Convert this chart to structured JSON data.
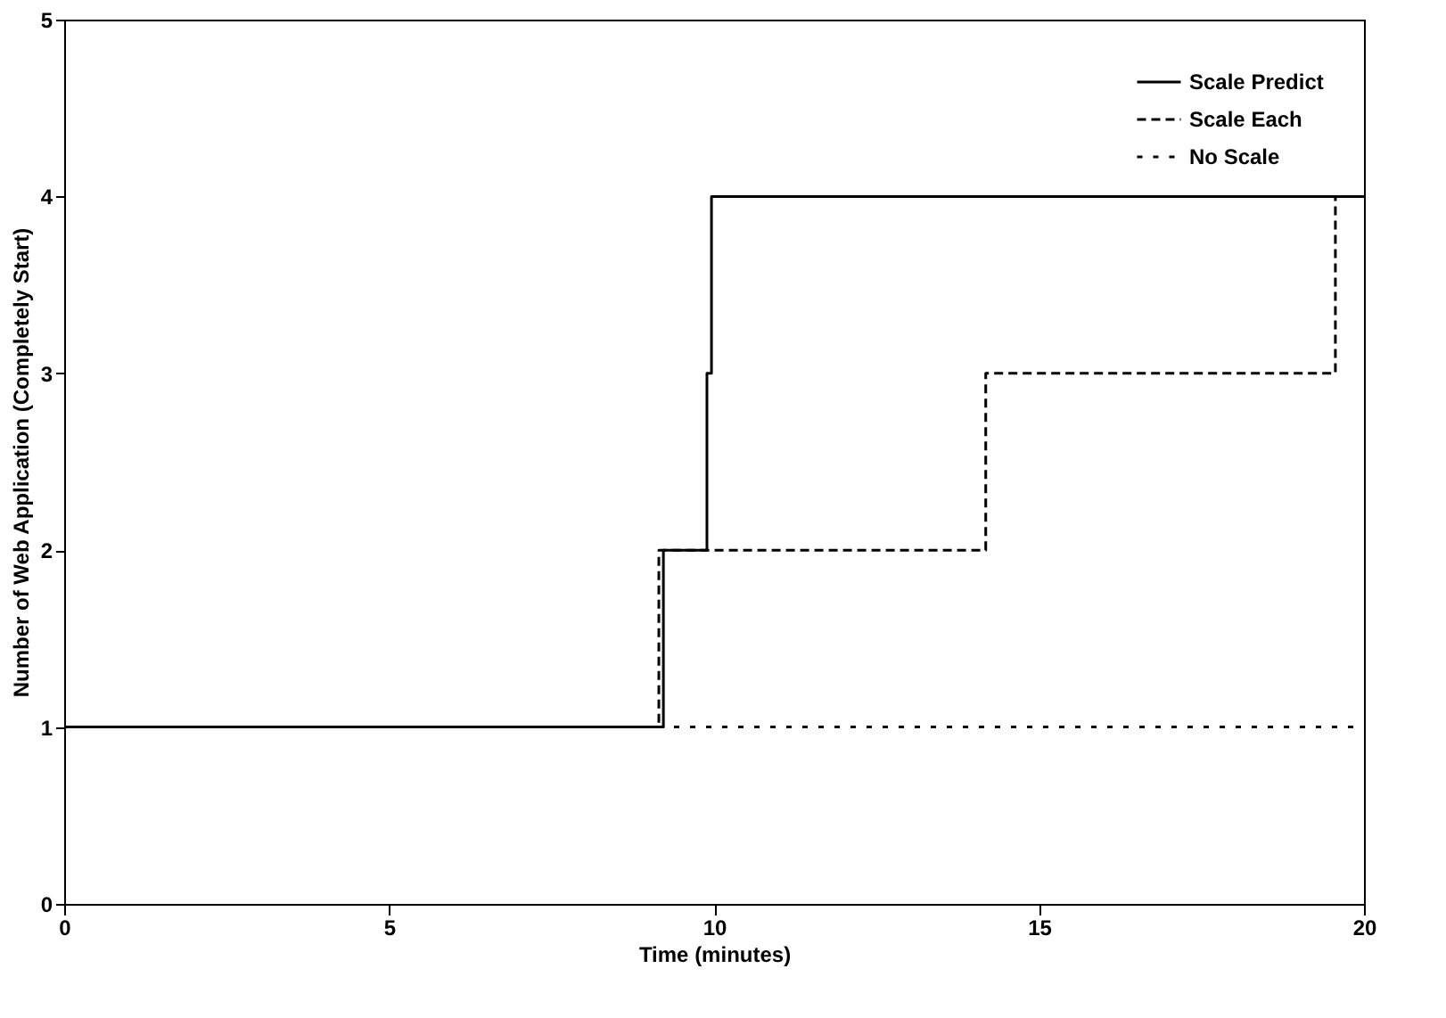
{
  "chart_data": {
    "type": "step",
    "xlabel": "Time (minutes)",
    "ylabel": "Number of Web Application (Completely Start)",
    "xlim": [
      0,
      20
    ],
    "xticks": [
      0,
      5,
      10,
      15,
      20
    ],
    "ylim": [
      0,
      5
    ],
    "yticks": [
      0,
      1,
      2,
      3,
      4,
      5
    ],
    "grid": false,
    "legend": "top right",
    "marker": "none",
    "series": [
      {
        "name": "Scale Predict",
        "color": "#000000",
        "line_style": "solid",
        "x": [
          0,
          9.22,
          9.89,
          9.96,
          20
        ],
        "values": [
          1,
          2,
          3,
          4,
          4
        ]
      },
      {
        "name": "Scale Each",
        "color": "#000000",
        "line_style": "dashed",
        "x": [
          0,
          9.15,
          14.18,
          19.56,
          20
        ],
        "values": [
          1,
          2,
          3,
          4,
          4
        ]
      },
      {
        "name": "No Scale",
        "color": "#000000",
        "line_style": "dotted",
        "x": [
          0,
          20
        ],
        "values": [
          1,
          1
        ]
      }
    ]
  }
}
